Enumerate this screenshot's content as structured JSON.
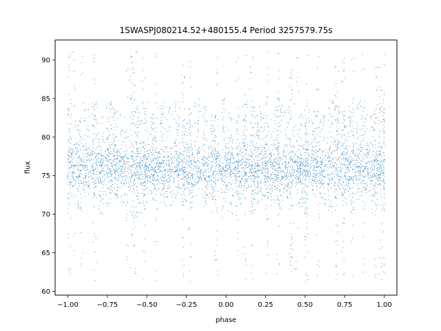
{
  "chart_data": {
    "type": "scatter",
    "title": "1SWASPJ080214.52+480155.4 Period 3257579.75s",
    "xlabel": "phase",
    "ylabel": "flux",
    "xlim": [
      -1.08,
      1.08
    ],
    "ylim": [
      59.5,
      92.6
    ],
    "xticks": [
      -1.0,
      -0.75,
      -0.5,
      -0.25,
      0.0,
      0.25,
      0.5,
      0.75,
      1.0
    ],
    "xtick_labels": [
      "−1.00",
      "−0.75",
      "−0.50",
      "−0.25",
      "0.00",
      "0.25",
      "0.50",
      "0.75",
      "1.00"
    ],
    "yticks": [
      60,
      65,
      70,
      75,
      80,
      85,
      90
    ],
    "ytick_labels": [
      "60",
      "65",
      "70",
      "75",
      "80",
      "85",
      "90"
    ],
    "grid": false,
    "legend": "none",
    "marker_color": "#1f77b4",
    "point_style": "dense small dots",
    "phase_range": [
      -1.0,
      1.0
    ],
    "flux_range": [
      61.2,
      91.1
    ],
    "main_band": {
      "center": 76,
      "half_width": 2.8
    },
    "segment_centers": [
      -0.99,
      -0.93,
      -0.88,
      -0.83,
      -0.79,
      -0.74,
      -0.7,
      -0.65,
      -0.59,
      -0.55,
      -0.51,
      -0.46,
      -0.4,
      -0.36,
      -0.31,
      -0.26,
      -0.22,
      -0.18,
      -0.13,
      -0.08,
      -0.01,
      0.03,
      0.08,
      0.12,
      0.17,
      0.21,
      0.25,
      0.3,
      0.34,
      0.38,
      0.42,
      0.47,
      0.51,
      0.56,
      0.61,
      0.66,
      0.7,
      0.75,
      0.79,
      0.84,
      0.88,
      0.93,
      0.97,
      1.0
    ],
    "segment_spans": [
      [
        71,
        85
      ],
      [
        70,
        83
      ],
      [
        72,
        84
      ],
      [
        72,
        85
      ],
      [
        70,
        84
      ],
      [
        71,
        85
      ],
      [
        72,
        84
      ],
      [
        71,
        83
      ],
      [
        62,
        91
      ],
      [
        70,
        84
      ],
      [
        71,
        85
      ],
      [
        72,
        83
      ],
      [
        70,
        85
      ],
      [
        71,
        84
      ],
      [
        72,
        85
      ],
      [
        71,
        83
      ],
      [
        70,
        84
      ],
      [
        72,
        85
      ],
      [
        71,
        84
      ],
      [
        70,
        83
      ],
      [
        69,
        85
      ],
      [
        70,
        84
      ],
      [
        71,
        83
      ],
      [
        72,
        85
      ],
      [
        70,
        84
      ],
      [
        71,
        85
      ],
      [
        72,
        83
      ],
      [
        71,
        84
      ],
      [
        70,
        85
      ],
      [
        72,
        84
      ],
      [
        62,
        89
      ],
      [
        71,
        83
      ],
      [
        70,
        85
      ],
      [
        72,
        84
      ],
      [
        71,
        83
      ],
      [
        70,
        85
      ],
      [
        72,
        84
      ],
      [
        71,
        83
      ],
      [
        70,
        84
      ],
      [
        71,
        85
      ],
      [
        72,
        84
      ],
      [
        70,
        83
      ],
      [
        71,
        85
      ],
      [
        70,
        84
      ]
    ],
    "scatter_columns": [
      -0.99,
      -0.96,
      -0.91,
      -0.83,
      -0.62,
      -0.59,
      -0.57,
      -0.52,
      -0.44,
      -0.27,
      -0.23,
      -0.06,
      0.07,
      0.12,
      0.16,
      0.26,
      0.33,
      0.41,
      0.45,
      0.51,
      0.58,
      0.7,
      0.74,
      0.8,
      0.87,
      0.95,
      0.98,
      1.0
    ],
    "point_count": 6000
  }
}
